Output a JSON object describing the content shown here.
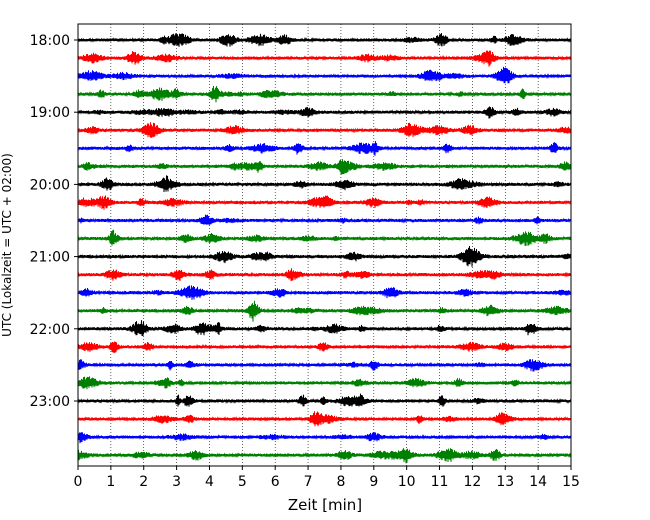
{
  "chart_data": {
    "type": "line",
    "title": "",
    "xlabel": "Zeit  [min]",
    "ylabel": "UTC (Lokalzeit = UTC + 02:00)",
    "xlim": [
      0,
      15
    ],
    "x_ticks": [
      0,
      1,
      2,
      3,
      4,
      5,
      6,
      7,
      8,
      9,
      10,
      11,
      12,
      13,
      14,
      15
    ],
    "x_tick_labels": [
      "0",
      "1",
      "2",
      "3",
      "4",
      "5",
      "6",
      "7",
      "8",
      "9",
      "10",
      "11",
      "12",
      "13",
      "14",
      "15"
    ],
    "y_tick_labels": [
      "18:00",
      "19:00",
      "20:00",
      "21:00",
      "22:00",
      "23:00"
    ],
    "grid": "vertical dotted",
    "trace_colors_cycle": [
      "#000000",
      "#ff0000",
      "#0000ff",
      "#008000"
    ],
    "trace_start_times": [
      "18:00",
      "18:15",
      "18:30",
      "18:45",
      "19:00",
      "19:15",
      "19:30",
      "19:45",
      "20:00",
      "20:15",
      "20:30",
      "20:45",
      "21:00",
      "21:15",
      "21:30",
      "21:45",
      "22:00",
      "22:15",
      "22:30",
      "22:45",
      "23:00",
      "23:15",
      "23:30",
      "23:45"
    ],
    "trace_duration_min": 15
  }
}
